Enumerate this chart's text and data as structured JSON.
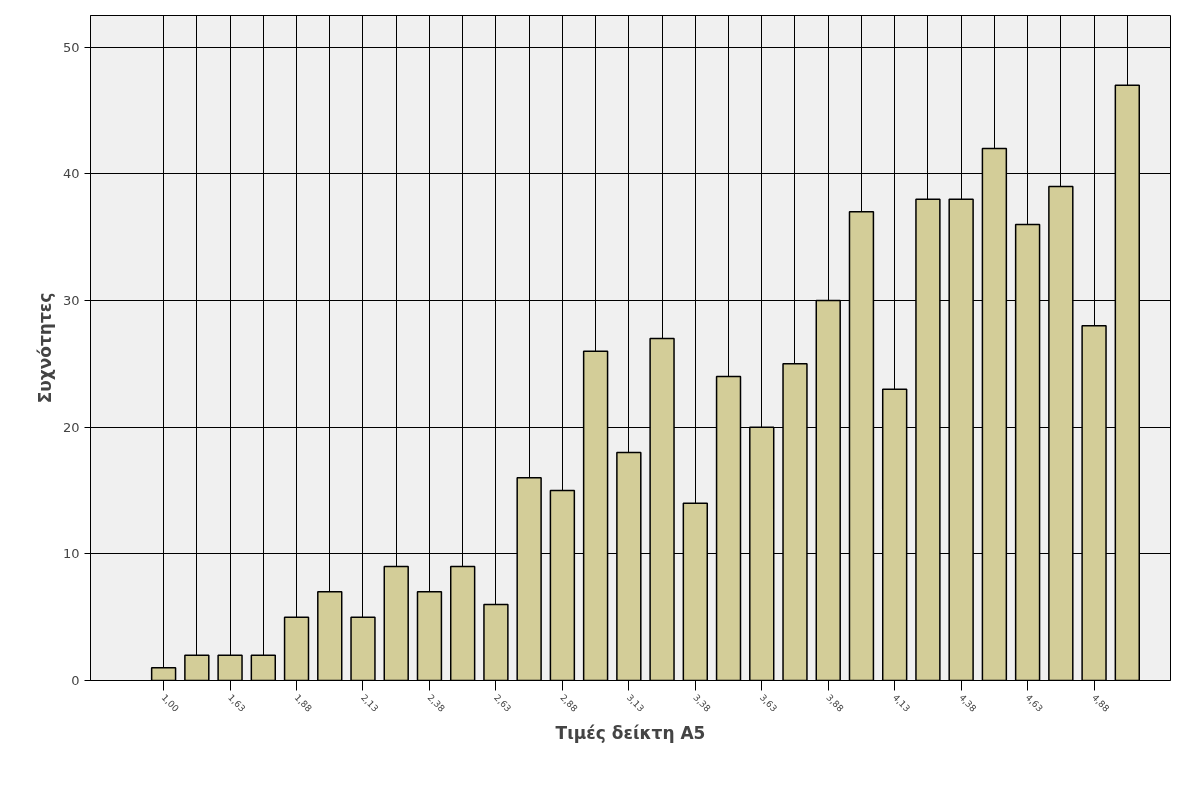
{
  "chart_data": {
    "type": "bar",
    "xlabel": "Τιμές δείκτη Α5",
    "ylabel": "Συχνότητες",
    "categories": [
      "1,00",
      null,
      "1,63",
      null,
      "1,88",
      null,
      "2,13",
      null,
      "2,38",
      null,
      "2,63",
      null,
      "2,88",
      null,
      "3,13",
      null,
      "3,38",
      null,
      "3,63",
      null,
      "3,88",
      null,
      "4,13",
      null,
      "4,38",
      null,
      "4,63",
      null,
      "4,88",
      null
    ],
    "values": [
      1,
      2,
      2,
      2,
      5,
      7,
      5,
      9,
      7,
      9,
      6,
      16,
      15,
      26,
      18,
      27,
      14,
      24,
      20,
      25,
      30,
      37,
      23,
      38,
      38,
      42,
      36,
      39,
      28,
      47
    ],
    "color": "#d3cd98",
    "ylim": [
      0,
      52.5
    ],
    "yticks": [
      0,
      10,
      20,
      30,
      40,
      50
    ],
    "grid": true
  }
}
